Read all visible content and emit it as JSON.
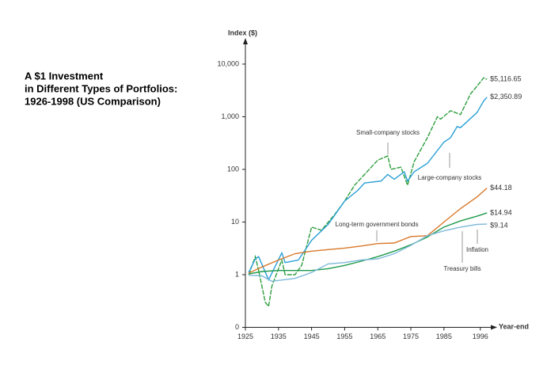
{
  "chart_data": {
    "type": "line",
    "title": [
      "A $1 Investment",
      "in Different Types of Portfolios:",
      "1926-1998 (US Comparison)"
    ],
    "y_label": "Index ($)",
    "x_label": "Year-end",
    "yscale": "log",
    "xlim": [
      1925,
      2001
    ],
    "ylim": [
      0.1,
      25000
    ],
    "xticks": [
      1925,
      1935,
      1945,
      1955,
      1965,
      1975,
      1985,
      1996
    ],
    "yticks": [
      {
        "value": 0.1,
        "label": "0"
      },
      1,
      10,
      100,
      {
        "value": 1000,
        "label": "1,000"
      },
      {
        "value": 10000,
        "label": "10,000"
      }
    ],
    "series": [
      {
        "name": "Small-company stocks",
        "color": "#2e9e3e",
        "x": [
          1926,
          1928,
          1929,
          1931,
          1932,
          1933,
          1936,
          1937,
          1940,
          1942,
          1945,
          1948,
          1952,
          1955,
          1958,
          1961,
          1965,
          1968,
          1969,
          1972,
          1974,
          1976,
          1980,
          1983,
          1984,
          1987,
          1990,
          1993,
          1995,
          1997,
          1998
        ],
        "values": [
          1,
          2.2,
          1.2,
          0.3,
          0.25,
          0.6,
          1.9,
          1.0,
          1.0,
          1.5,
          8,
          7,
          14,
          25,
          50,
          80,
          150,
          180,
          100,
          110,
          50,
          140,
          400,
          1000,
          900,
          1300,
          1100,
          2700,
          3800,
          5500,
          5116.65
        ],
        "value_labels": [
          null,
          null,
          null,
          null,
          null,
          null,
          null,
          null,
          null,
          null,
          null,
          null,
          null,
          null,
          null,
          null,
          null,
          null,
          null,
          null,
          null,
          null,
          null,
          null,
          null,
          null,
          null,
          null,
          null,
          null,
          "$5,116.65"
        ]
      },
      {
        "name": "Large-company stocks",
        "color": "#2a9fd6",
        "x": [
          1926,
          1928,
          1929,
          1932,
          1936,
          1937,
          1941,
          1945,
          1950,
          1955,
          1959,
          1961,
          1966,
          1968,
          1970,
          1973,
          1974,
          1976,
          1980,
          1985,
          1987,
          1989,
          1990,
          1995,
          1997,
          1998
        ],
        "values": [
          1.1,
          2,
          2.2,
          0.8,
          2.6,
          1.7,
          1.9,
          4.5,
          9,
          25,
          40,
          55,
          60,
          80,
          65,
          90,
          60,
          90,
          130,
          330,
          400,
          650,
          620,
          1200,
          2000,
          2350.89
        ],
        "value_labels": [
          null,
          null,
          null,
          null,
          null,
          null,
          null,
          null,
          null,
          null,
          null,
          null,
          null,
          null,
          null,
          null,
          null,
          null,
          null,
          null,
          null,
          null,
          null,
          null,
          null,
          "$2,350.89"
        ]
      },
      {
        "name": "Long-term government bonds",
        "color": "#d9782a",
        "x": [
          1926,
          1930,
          1935,
          1940,
          1945,
          1950,
          1955,
          1960,
          1965,
          1970,
          1975,
          1980,
          1985,
          1990,
          1995,
          1998
        ],
        "values": [
          1.07,
          1.4,
          1.9,
          2.5,
          2.8,
          3,
          3.2,
          3.5,
          3.9,
          4,
          5.3,
          5.5,
          10,
          18,
          30,
          44.18
        ],
        "value_labels": [
          null,
          null,
          null,
          null,
          null,
          null,
          null,
          null,
          null,
          null,
          null,
          null,
          null,
          null,
          null,
          "$44.18"
        ]
      },
      {
        "name": "Treasury bills",
        "color": "#1e9a4a",
        "x": [
          1926,
          1930,
          1935,
          1940,
          1945,
          1950,
          1955,
          1960,
          1965,
          1970,
          1975,
          1980,
          1985,
          1990,
          1995,
          1998
        ],
        "values": [
          1.03,
          1.15,
          1.2,
          1.2,
          1.2,
          1.3,
          1.5,
          1.8,
          2.2,
          2.8,
          3.7,
          5.2,
          8,
          10.5,
          12.9,
          14.94
        ],
        "value_labels": [
          null,
          null,
          null,
          null,
          null,
          null,
          null,
          null,
          null,
          null,
          null,
          null,
          null,
          null,
          null,
          "$14.94"
        ]
      },
      {
        "name": "Inflation",
        "color": "#7fb9d9",
        "x": [
          1926,
          1930,
          1933,
          1940,
          1945,
          1950,
          1955,
          1960,
          1965,
          1970,
          1975,
          1980,
          1985,
          1990,
          1995,
          1998
        ],
        "values": [
          0.98,
          0.95,
          0.75,
          0.85,
          1.1,
          1.6,
          1.7,
          1.9,
          2,
          2.5,
          3.6,
          5.5,
          6.8,
          8,
          9,
          9.14
        ],
        "value_labels": [
          null,
          null,
          null,
          null,
          null,
          null,
          null,
          null,
          null,
          null,
          null,
          null,
          null,
          null,
          null,
          "$9.14"
        ]
      }
    ]
  }
}
